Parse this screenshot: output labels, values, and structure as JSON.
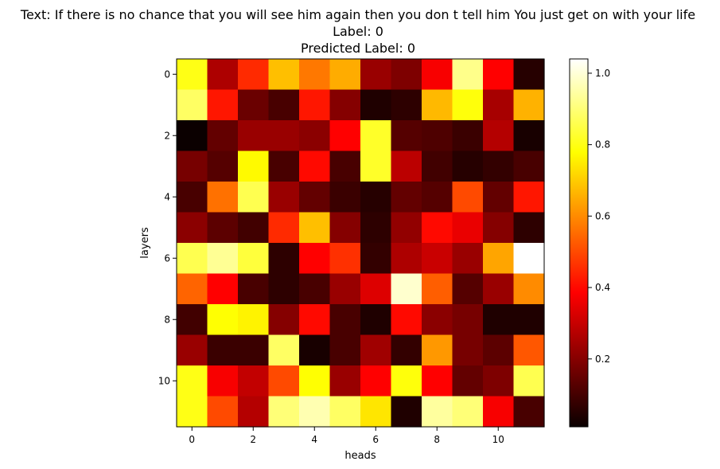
{
  "chart_data": {
    "type": "heatmap",
    "title_lines": [
      "Text: If there is no chance that you will see him again then you don t tell him You just get on with your life",
      "Label: 0",
      "Predicted Label: 0"
    ],
    "xlabel": "heads",
    "ylabel": "layers",
    "x_ticks": [
      0,
      2,
      4,
      6,
      8,
      10
    ],
    "y_ticks": [
      0,
      2,
      4,
      6,
      8,
      10
    ],
    "colormap": "hot",
    "colorbar": {
      "range": [
        0.01,
        1.04
      ],
      "ticks": [
        0.2,
        0.4,
        0.6,
        0.8,
        1.0
      ],
      "tick_labels": [
        "0.2",
        "0.4",
        "0.6",
        "0.8",
        "1.0"
      ]
    },
    "values": [
      [
        0.8,
        0.25,
        0.45,
        0.68,
        0.57,
        0.65,
        0.22,
        0.18,
        0.36,
        0.92,
        0.38,
        0.05
      ],
      [
        0.88,
        0.42,
        0.15,
        0.1,
        0.42,
        0.19,
        0.04,
        0.06,
        0.67,
        0.79,
        0.24,
        0.66
      ],
      [
        0.01,
        0.14,
        0.22,
        0.22,
        0.2,
        0.38,
        0.82,
        0.12,
        0.11,
        0.08,
        0.26,
        0.03
      ],
      [
        0.17,
        0.12,
        0.77,
        0.1,
        0.4,
        0.1,
        0.82,
        0.27,
        0.09,
        0.05,
        0.07,
        0.1
      ],
      [
        0.1,
        0.56,
        0.86,
        0.22,
        0.14,
        0.08,
        0.05,
        0.14,
        0.12,
        0.5,
        0.14,
        0.42
      ],
      [
        0.2,
        0.13,
        0.09,
        0.45,
        0.68,
        0.19,
        0.06,
        0.21,
        0.4,
        0.34,
        0.19,
        0.06
      ],
      [
        0.86,
        0.93,
        0.84,
        0.06,
        0.38,
        0.46,
        0.07,
        0.25,
        0.29,
        0.22,
        0.64,
        1.04
      ],
      [
        0.54,
        0.38,
        0.1,
        0.06,
        0.1,
        0.22,
        0.32,
        0.99,
        0.53,
        0.12,
        0.22,
        0.6
      ],
      [
        0.09,
        0.78,
        0.76,
        0.19,
        0.4,
        0.1,
        0.04,
        0.4,
        0.2,
        0.17,
        0.04,
        0.04
      ],
      [
        0.22,
        0.08,
        0.08,
        0.88,
        0.03,
        0.1,
        0.23,
        0.07,
        0.62,
        0.17,
        0.13,
        0.52
      ],
      [
        0.8,
        0.36,
        0.28,
        0.5,
        0.78,
        0.22,
        0.38,
        0.79,
        0.38,
        0.14,
        0.18,
        0.86
      ],
      [
        0.8,
        0.5,
        0.26,
        0.9,
        0.96,
        0.88,
        0.74,
        0.04,
        0.94,
        0.9,
        0.36,
        0.1
      ]
    ]
  }
}
